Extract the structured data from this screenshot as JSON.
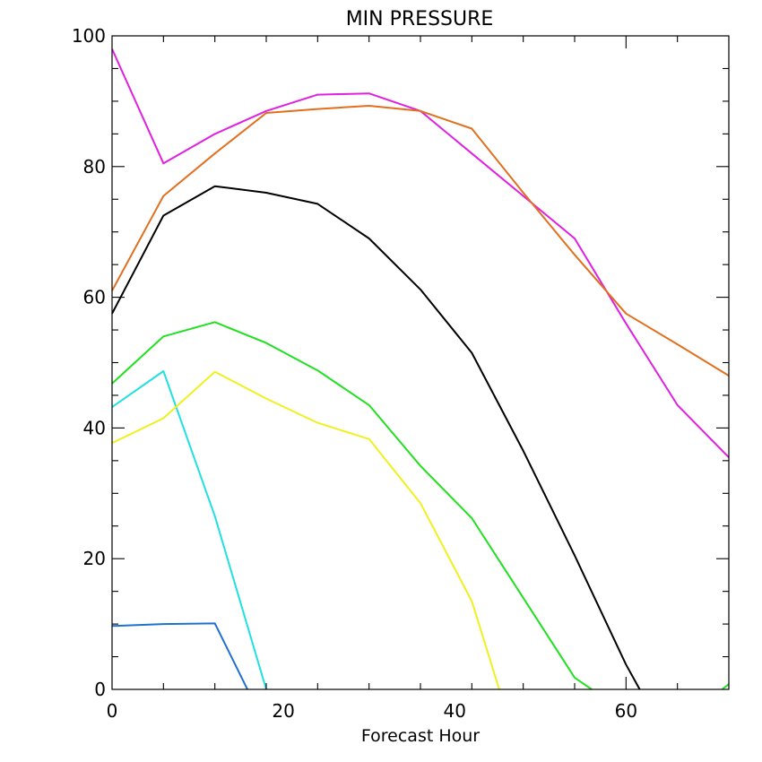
{
  "chart_data": {
    "type": "line",
    "title": "MIN PRESSURE",
    "xlabel": "Forecast Hour",
    "ylabel": "",
    "xlim": [
      0,
      72
    ],
    "ylim": [
      0,
      100
    ],
    "x_ticks": [
      0,
      20,
      40,
      60
    ],
    "y_ticks": [
      0,
      20,
      40,
      60,
      80,
      100
    ],
    "x_minor_step": 6,
    "y_minor_step": 5,
    "grid": false,
    "legend": "none",
    "series": [
      {
        "color": "#e020e0",
        "points": [
          [
            0,
            98
          ],
          [
            6,
            80.5
          ],
          [
            12,
            85
          ],
          [
            18,
            88.5
          ],
          [
            24,
            91
          ],
          [
            30,
            91.2
          ],
          [
            36,
            88.5
          ],
          [
            42,
            82
          ],
          [
            48,
            75.5
          ],
          [
            54,
            69
          ],
          [
            60,
            56
          ],
          [
            66,
            43.5
          ],
          [
            72,
            35.5
          ]
        ]
      },
      {
        "color": "#e07020",
        "points": [
          [
            0,
            61
          ],
          [
            6,
            75.5
          ],
          [
            12,
            82
          ],
          [
            18,
            88.2
          ],
          [
            24,
            88.8
          ],
          [
            30,
            89.3
          ],
          [
            36,
            88.5
          ],
          [
            42,
            85.8
          ],
          [
            48,
            76
          ],
          [
            54,
            66.5
          ],
          [
            60,
            57.5
          ],
          [
            66,
            52.8
          ],
          [
            72,
            48
          ]
        ]
      },
      {
        "color": "#000000",
        "points": [
          [
            0,
            57.5
          ],
          [
            6,
            72.5
          ],
          [
            12,
            77
          ],
          [
            18,
            76
          ],
          [
            24,
            74.3
          ],
          [
            30,
            69
          ],
          [
            36,
            61.2
          ],
          [
            42,
            51.5
          ],
          [
            48,
            36.5
          ],
          [
            54,
            20.5
          ],
          [
            60,
            3.8
          ],
          [
            61.6,
            0
          ]
        ]
      },
      {
        "color": "#20e020",
        "points": [
          [
            0,
            46.8
          ],
          [
            6,
            54
          ],
          [
            12,
            56.2
          ],
          [
            18,
            53
          ],
          [
            24,
            48.8
          ],
          [
            30,
            43.5
          ],
          [
            36,
            34.2
          ],
          [
            42,
            26.2
          ],
          [
            48,
            14
          ],
          [
            54,
            1.8
          ],
          [
            56,
            0
          ]
        ]
      },
      {
        "color": "#20e0e0",
        "points": [
          [
            0,
            43.2
          ],
          [
            6,
            48.7
          ],
          [
            12,
            26.5
          ],
          [
            18,
            0
          ]
        ]
      },
      {
        "color": "#f0f020",
        "points": [
          [
            0,
            37.7
          ],
          [
            6,
            41.5
          ],
          [
            12,
            48.6
          ],
          [
            18,
            44.5
          ],
          [
            24,
            40.8
          ],
          [
            30,
            38.3
          ],
          [
            36,
            28.5
          ],
          [
            42,
            13.5
          ],
          [
            45.2,
            0
          ]
        ]
      },
      {
        "color": "#2070d0",
        "points": [
          [
            0,
            9.7
          ],
          [
            6,
            10
          ],
          [
            12,
            10.1
          ],
          [
            15.8,
            0
          ]
        ]
      },
      {
        "color": "#20e020",
        "points": [
          [
            71.2,
            0
          ],
          [
            72,
            0.8
          ]
        ]
      }
    ]
  }
}
